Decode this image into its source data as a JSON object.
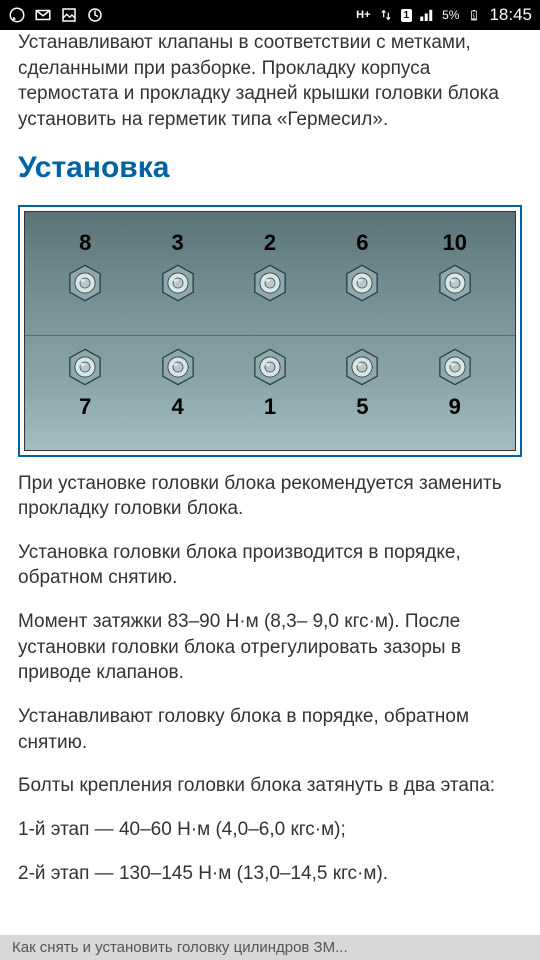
{
  "statusbar": {
    "time": "18:45",
    "battery": "5%",
    "sim": "1",
    "network": "H+"
  },
  "content": {
    "intro": "Устанавливают клапаны в соответствии с метками, сделанными при разборке. Прокладку корпуса термостата и прокладку задней крышки головки блока установить на герметик типа «Гермесил».",
    "heading": "Установка",
    "para1": "При установке головки блока рекомендуется заменить прокладку головки блока.",
    "para2": "Установка головки блока производится в порядке, обратном снятию.",
    "para3": "Момент затяжки 83–90 Н·м (8,3– 9,0 кгс·м). После установки головки блока отрегулировать зазоры в приводе клапанов.",
    "para4": "Устанавливают головку блока в порядке, обратном снятию.",
    "para5": "Болты крепления головки блока затянуть в два этапа:",
    "para6": "1-й этап — 40–60 Н·м (4,0–6,0 кгс·м);",
    "para7": "2-й этап — 130–145 Н·м (13,0–14,5 кгс·м)."
  },
  "diagram": {
    "type": "infographic",
    "background_gradient": [
      "#5a7378",
      "#a3bdc2"
    ],
    "border_color": "#0063a5",
    "bolt_color_outer": "#8fa8ad",
    "bolt_color_inner": "#d8e4e6",
    "bolt_stroke": "#2a3a3d",
    "top_row": [
      "8",
      "3",
      "2",
      "6",
      "10"
    ],
    "bottom_row": [
      "7",
      "4",
      "1",
      "5",
      "9"
    ]
  },
  "bottombar": {
    "title": "Как снять и установить головку цилиндров ЗМ..."
  }
}
